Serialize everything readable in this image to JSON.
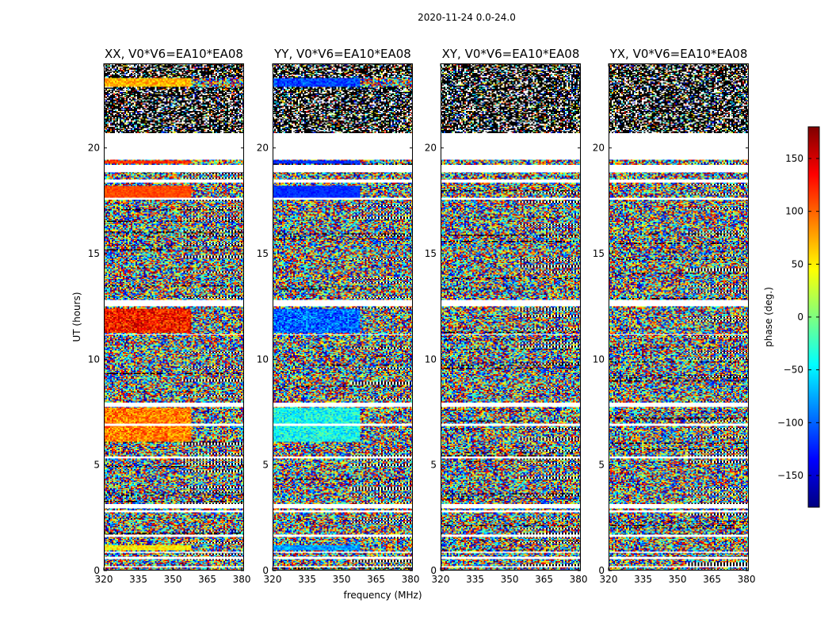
{
  "figure_title": "2020-11-24 0.0-24.0",
  "colors": {
    "colormap": [
      "#00007f",
      "#0000ff",
      "#007fff",
      "#00ffff",
      "#7fff7f",
      "#ffff00",
      "#ff7f00",
      "#ff0000",
      "#7f0000"
    ],
    "axis": "#000000",
    "flagged_gap": "#ffffff",
    "flagged_noise": "#000000"
  },
  "colorbar": {
    "label": "phase (deg.)",
    "range": [
      -180,
      180
    ],
    "ticks": [
      "150",
      "100",
      "50",
      "0",
      "−50",
      "−100",
      "−150"
    ],
    "tick_values": [
      150,
      100,
      50,
      0,
      -50,
      -100,
      -150
    ]
  },
  "chart_data": {
    "type": "heatmap",
    "title": "2020-11-24 0.0-24.0",
    "xlabel": "frequency (MHz)",
    "ylabel": "UT (hours)",
    "xlim": [
      320,
      381
    ],
    "ylim": [
      0,
      24
    ],
    "xticks": [
      "320",
      "335",
      "350",
      "365",
      "380"
    ],
    "xtick_values": [
      320,
      335,
      350,
      365,
      380
    ],
    "yticks": [
      "0",
      "5",
      "10",
      "15",
      "20"
    ],
    "ytick_values": [
      0,
      5,
      10,
      15,
      20
    ],
    "value_label": "phase (deg.)",
    "value_range": [
      -180,
      180
    ],
    "flagged_time_ranges": [
      [
        0.15,
        0.2
      ],
      [
        0.55,
        0.65
      ],
      [
        0.85,
        0.92
      ],
      [
        1.6,
        1.72
      ],
      [
        2.75,
        2.85
      ],
      [
        2.95,
        3.15
      ],
      [
        5.3,
        5.4
      ],
      [
        6.85,
        6.95
      ],
      [
        7.75,
        7.95
      ],
      [
        11.15,
        11.22
      ],
      [
        12.5,
        12.8
      ],
      [
        17.55,
        17.65
      ],
      [
        18.35,
        18.5
      ],
      [
        18.85,
        19.2
      ],
      [
        19.45,
        20.7
      ]
    ],
    "dense_flag_region": [
      20.7,
      24.0
    ],
    "panels": [
      {
        "title": "XX, V0*V6=EA10*EA08",
        "coherent_bands": [
          [
            0.95,
            1.2,
            50,
            30
          ],
          [
            6.1,
            7.7,
            90,
            40
          ],
          [
            11.25,
            12.4,
            130,
            45
          ],
          [
            17.65,
            18.2,
            110,
            15
          ],
          [
            19.25,
            19.4,
            120,
            20
          ],
          [
            22.9,
            23.3,
            70,
            30
          ]
        ]
      },
      {
        "title": "YY, V0*V6=EA10*EA08",
        "coherent_bands": [
          [
            0.95,
            1.2,
            -80,
            30
          ],
          [
            6.1,
            7.7,
            -40,
            40
          ],
          [
            11.25,
            12.4,
            -100,
            45
          ],
          [
            17.65,
            18.2,
            -120,
            15
          ],
          [
            19.25,
            19.4,
            -120,
            20
          ],
          [
            22.9,
            23.3,
            -110,
            30
          ]
        ]
      },
      {
        "title": "XY, V0*V6=EA10*EA08",
        "coherent_bands": []
      },
      {
        "title": "YX, V0*V6=EA10*EA08",
        "coherent_bands": []
      }
    ]
  }
}
